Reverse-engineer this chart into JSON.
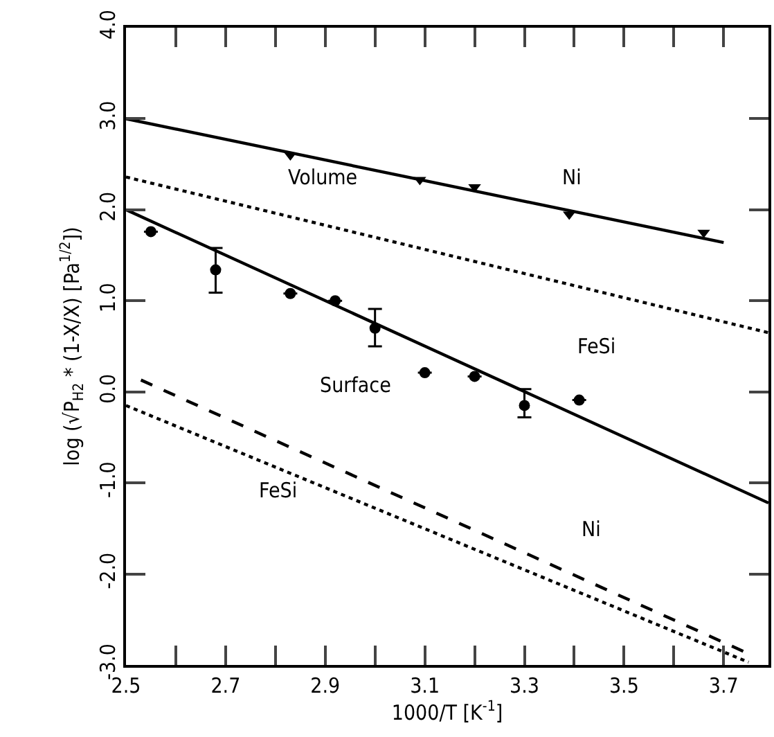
{
  "chart_data": {
    "type": "line",
    "xlabel": "1000/T [K$^{-1}$]",
    "ylabel": "log (√P$_{H2}$ * (1-X/X) [Pa$^{1/2}$])",
    "xlim": [
      2.5,
      3.79
    ],
    "ylim": [
      -3.0,
      4.0
    ],
    "xticks": [
      2.5,
      {
        "value": 2.6,
        "label": null
      },
      2.7,
      {
        "value": 2.8,
        "label": null
      },
      2.9,
      {
        "value": 3.0,
        "label": null
      },
      3.1,
      {
        "value": 3.2,
        "label": null
      },
      3.3,
      {
        "value": 3.4,
        "label": null
      },
      3.5,
      {
        "value": 3.6,
        "label": null
      },
      3.7
    ],
    "yticks": [
      {
        "value": -3,
        "label": "-3.0"
      },
      {
        "value": -2,
        "label": "-2.0"
      },
      {
        "value": -1,
        "label": "-1.0"
      },
      {
        "value": 0,
        "label": "0.0"
      },
      {
        "value": 1,
        "label": "1.0"
      },
      {
        "value": 2,
        "label": "2.0"
      },
      {
        "value": 3,
        "label": "3.0"
      },
      {
        "value": 4,
        "label": "4.0"
      }
    ],
    "grid": false,
    "series": [
      {
        "color": "#000000",
        "line_style": "solid",
        "marker": "none",
        "x": [
          2.5,
          3.7
        ],
        "values": [
          3.0,
          1.64
        ]
      },
      {
        "type": "scatter",
        "color": "#000000",
        "marker": "triangle",
        "x": [
          2.83,
          3.09,
          3.2,
          3.39,
          3.66
        ],
        "values": [
          2.6,
          2.33,
          2.25,
          1.95,
          1.75
        ]
      },
      {
        "color": "#000000",
        "line_style": "dotted",
        "marker": "none",
        "x": [
          2.5,
          3.79
        ],
        "values": [
          2.36,
          0.65
        ]
      },
      {
        "color": "#000000",
        "line_style": "solid",
        "marker": "none",
        "x": [
          2.5,
          3.79
        ],
        "values": [
          2.0,
          -1.22
        ]
      },
      {
        "type": "scatter",
        "color": "#000000",
        "marker": "circle",
        "x": [
          2.55,
          2.68,
          2.83,
          2.92,
          3.0,
          3.1,
          3.2,
          3.3,
          3.41
        ],
        "values": [
          1.76,
          1.34,
          1.08,
          1.0,
          0.7,
          0.21,
          0.17,
          -0.15,
          -0.09
        ],
        "errors": [
          null,
          [
            1.09,
            1.58
          ],
          null,
          null,
          [
            0.5,
            0.91
          ],
          null,
          null,
          [
            -0.28,
            0.03
          ],
          null
        ]
      },
      {
        "color": "#000000",
        "line_style": "dashed",
        "marker": "none",
        "x": [
          2.53,
          3.76
        ],
        "values": [
          0.13,
          -2.9
        ]
      },
      {
        "color": "#000000",
        "line_style": "dotted",
        "marker": "none",
        "x": [
          2.5,
          3.75
        ],
        "values": [
          -0.15,
          -2.97
        ]
      }
    ],
    "annotations": [
      "Volume",
      "Ni",
      "FeSi",
      "Surface",
      "FeSi",
      "Ni"
    ]
  }
}
